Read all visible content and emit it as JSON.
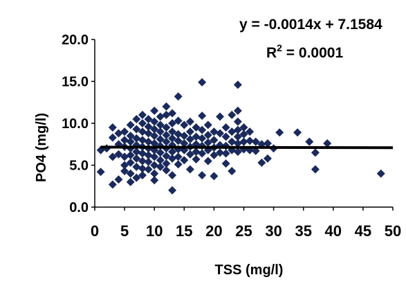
{
  "chart_data": {
    "type": "scatter",
    "xlabel": "TSS (mg/l)",
    "ylabel": "PO4 (mg/l)",
    "xlim": [
      0,
      50
    ],
    "ylim": [
      0,
      20
    ],
    "x_ticks": [
      "0",
      "5",
      "10",
      "15",
      "20",
      "25",
      "30",
      "35",
      "40",
      "45",
      "50"
    ],
    "y_ticks": [
      "0.0",
      "5.0",
      "10.0",
      "15.0",
      "20.0"
    ],
    "grid": false,
    "marker_color": "#1b2a5c",
    "trendline_color": "#000000",
    "annotations": {
      "equation": "y = -0.0014x + 7.1584",
      "r2_prefix": "R",
      "r2_exp": "2",
      "r2_suffix": " = 0.0001"
    },
    "trendline": {
      "slope": -0.0014,
      "intercept": 7.1584
    },
    "points": [
      [
        1,
        6.8
      ],
      [
        1,
        4.2
      ],
      [
        2,
        7.0
      ],
      [
        3,
        9.5
      ],
      [
        3,
        8.3
      ],
      [
        3,
        6.0
      ],
      [
        3,
        2.7
      ],
      [
        4,
        8.8
      ],
      [
        4,
        7.5
      ],
      [
        4,
        6.3
      ],
      [
        4,
        3.3
      ],
      [
        5,
        9.0
      ],
      [
        5,
        8.0
      ],
      [
        5,
        7.2
      ],
      [
        5,
        6.0
      ],
      [
        5,
        5.0
      ],
      [
        5,
        4.3
      ],
      [
        6,
        9.8
      ],
      [
        6,
        8.5
      ],
      [
        6,
        7.8
      ],
      [
        6,
        7.0
      ],
      [
        6,
        6.2
      ],
      [
        6,
        5.3
      ],
      [
        6,
        4.0
      ],
      [
        6,
        3.0
      ],
      [
        7,
        10.5
      ],
      [
        7,
        9.3
      ],
      [
        7,
        8.2
      ],
      [
        7,
        7.4
      ],
      [
        7,
        6.6
      ],
      [
        7,
        5.8
      ],
      [
        7,
        4.8
      ],
      [
        7,
        3.5
      ],
      [
        8,
        11.0
      ],
      [
        8,
        10.0
      ],
      [
        8,
        9.0
      ],
      [
        8,
        8.0
      ],
      [
        8,
        7.2
      ],
      [
        8,
        6.4
      ],
      [
        8,
        5.5
      ],
      [
        8,
        4.6
      ],
      [
        8,
        3.8
      ],
      [
        9,
        10.5
      ],
      [
        9,
        9.6
      ],
      [
        9,
        8.8
      ],
      [
        9,
        7.8
      ],
      [
        9,
        7.0
      ],
      [
        9,
        6.2
      ],
      [
        9,
        5.4
      ],
      [
        9,
        4.5
      ],
      [
        10,
        11.5
      ],
      [
        10,
        10.2
      ],
      [
        10,
        9.3
      ],
      [
        10,
        8.5
      ],
      [
        10,
        7.6
      ],
      [
        10,
        6.8
      ],
      [
        10,
        6.0
      ],
      [
        10,
        5.0
      ],
      [
        10,
        4.0
      ],
      [
        10,
        3.2
      ],
      [
        11,
        10.8
      ],
      [
        11,
        9.8
      ],
      [
        11,
        9.0
      ],
      [
        11,
        8.1
      ],
      [
        11,
        7.3
      ],
      [
        11,
        6.5
      ],
      [
        11,
        5.6
      ],
      [
        11,
        4.8
      ],
      [
        12,
        12.0
      ],
      [
        12,
        11.0
      ],
      [
        12,
        9.5
      ],
      [
        12,
        8.6
      ],
      [
        12,
        7.8
      ],
      [
        12,
        7.0
      ],
      [
        12,
        6.1
      ],
      [
        12,
        5.2
      ],
      [
        12,
        4.4
      ],
      [
        13,
        11.2
      ],
      [
        13,
        10.0
      ],
      [
        13,
        9.0
      ],
      [
        13,
        8.2
      ],
      [
        13,
        7.4
      ],
      [
        13,
        6.6
      ],
      [
        13,
        5.8
      ],
      [
        13,
        3.8
      ],
      [
        13,
        2.0
      ],
      [
        14,
        13.2
      ],
      [
        14,
        10.3
      ],
      [
        14,
        8.7
      ],
      [
        14,
        7.9
      ],
      [
        14,
        6.9
      ],
      [
        14,
        6.0
      ],
      [
        14,
        5.1
      ],
      [
        15,
        9.8
      ],
      [
        15,
        8.5
      ],
      [
        15,
        7.6
      ],
      [
        15,
        6.8
      ],
      [
        15,
        5.6
      ],
      [
        16,
        10.2
      ],
      [
        16,
        9.0
      ],
      [
        16,
        8.1
      ],
      [
        16,
        7.2
      ],
      [
        16,
        6.3
      ],
      [
        16,
        4.5
      ],
      [
        17,
        9.5
      ],
      [
        17,
        8.4
      ],
      [
        17,
        7.5
      ],
      [
        17,
        6.6
      ],
      [
        17,
        5.7
      ],
      [
        18,
        14.9
      ],
      [
        18,
        10.9
      ],
      [
        18,
        9.2
      ],
      [
        18,
        8.2
      ],
      [
        18,
        7.3
      ],
      [
        18,
        6.4
      ],
      [
        18,
        3.8
      ],
      [
        19,
        9.8
      ],
      [
        19,
        8.6
      ],
      [
        19,
        7.7
      ],
      [
        19,
        6.8
      ],
      [
        19,
        5.5
      ],
      [
        20,
        9.0
      ],
      [
        20,
        8.0
      ],
      [
        20,
        7.1
      ],
      [
        20,
        6.2
      ],
      [
        20,
        3.7
      ],
      [
        21,
        10.8
      ],
      [
        21,
        8.8
      ],
      [
        21,
        7.4
      ],
      [
        21,
        6.5
      ],
      [
        22,
        9.5
      ],
      [
        22,
        8.4
      ],
      [
        22,
        7.3
      ],
      [
        22,
        6.4
      ],
      [
        22,
        5.2
      ],
      [
        23,
        11.0
      ],
      [
        23,
        9.0
      ],
      [
        23,
        7.8
      ],
      [
        23,
        6.8
      ],
      [
        23,
        4.3
      ],
      [
        24,
        14.6
      ],
      [
        24,
        11.5
      ],
      [
        24,
        10.2
      ],
      [
        24,
        9.2
      ],
      [
        24,
        8.4
      ],
      [
        24,
        7.6
      ],
      [
        24,
        6.6
      ],
      [
        25,
        9.5
      ],
      [
        25,
        8.7
      ],
      [
        25,
        7.8
      ],
      [
        25,
        6.9
      ],
      [
        26,
        9.0
      ],
      [
        26,
        7.9
      ],
      [
        26,
        6.8
      ],
      [
        27,
        7.8
      ],
      [
        27,
        6.7
      ],
      [
        28,
        7.5
      ],
      [
        28,
        5.3
      ],
      [
        29,
        7.6
      ],
      [
        29,
        5.8
      ],
      [
        30,
        7.0
      ],
      [
        31,
        8.9
      ],
      [
        34,
        8.9
      ],
      [
        36,
        7.8
      ],
      [
        37,
        6.5
      ],
      [
        37,
        4.5
      ],
      [
        39,
        7.6
      ],
      [
        48,
        4.0
      ]
    ]
  }
}
